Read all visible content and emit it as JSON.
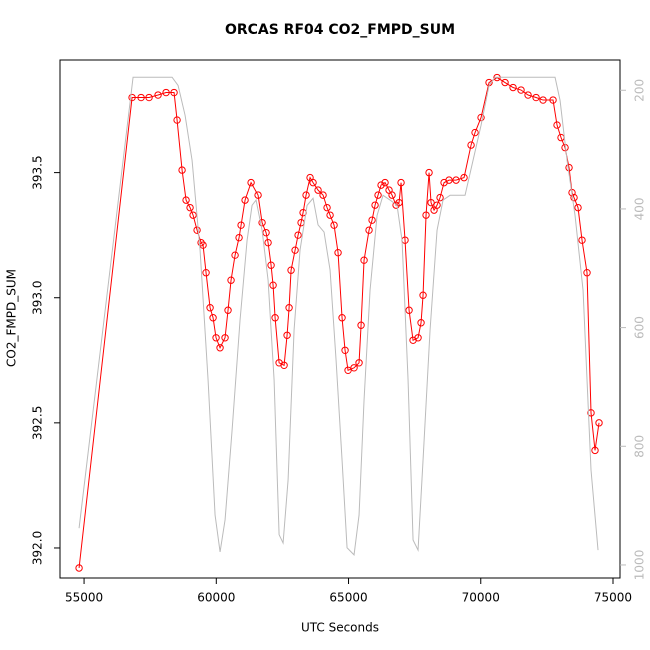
{
  "chart_data": {
    "type": "line",
    "title": "ORCAS RF04 CO2_FMPD_SUM",
    "xlabel": "UTC Seconds",
    "ylabel": "CO2_FMPD_SUM",
    "xlim": [
      54090,
      75265
    ],
    "xticks": [
      55000,
      60000,
      65000,
      70000,
      75000
    ],
    "ylim": [
      391.88,
      393.95
    ],
    "yticks": [
      {
        "value": 392.0,
        "label": "392.0"
      },
      392.5,
      {
        "value": 393.0,
        "label": "393.0"
      },
      393.5
    ],
    "y2lim": [
      1022,
      149
    ],
    "y2ticks": [
      200,
      400,
      600,
      800,
      1000
    ],
    "y2color": "#bbbbbb",
    "series": [
      {
        "color": "#ff0000",
        "marker": "circle",
        "x": [
          54811,
          56815,
          57156,
          57458,
          57798,
          58101,
          58403,
          58517,
          58706,
          58857,
          59008,
          59122,
          59273,
          59424,
          59500,
          59613,
          59765,
          59878,
          59991,
          60142,
          60331,
          60444,
          60558,
          60710,
          60861,
          60937,
          61088,
          61315,
          61580,
          61731,
          61882,
          61958,
          62071,
          62147,
          62223,
          62374,
          62563,
          62676,
          62752,
          62827,
          62979,
          63092,
          63205,
          63281,
          63394,
          63545,
          63659,
          63848,
          64037,
          64188,
          64302,
          64453,
          64604,
          64755,
          64869,
          64982,
          65209,
          65398,
          65474,
          65587,
          65776,
          65890,
          66003,
          66116,
          66230,
          66381,
          66532,
          66646,
          66797,
          66911,
          66986,
          67137,
          67289,
          67440,
          67629,
          67742,
          67818,
          67931,
          68045,
          68120,
          68234,
          68347,
          68461,
          68612,
          68801,
          69066,
          69368,
          69633,
          69784,
          70011,
          70313,
          70616,
          70918,
          71221,
          71523,
          71788,
          72091,
          72355,
          72733,
          72884,
          73035,
          73187,
          73338,
          73451,
          73527,
          73678,
          73829,
          74018,
          74169,
          74320,
          74472
        ],
        "values": [
          391.92,
          393.8,
          393.8,
          393.8,
          393.81,
          393.82,
          393.82,
          393.71,
          393.51,
          393.39,
          393.36,
          393.33,
          393.27,
          393.22,
          393.21,
          393.1,
          392.96,
          392.92,
          392.84,
          392.8,
          392.84,
          392.95,
          393.07,
          393.17,
          393.24,
          393.29,
          393.39,
          393.46,
          393.41,
          393.3,
          393.26,
          393.22,
          393.13,
          393.05,
          392.92,
          392.74,
          392.73,
          392.85,
          392.96,
          393.11,
          393.19,
          393.25,
          393.3,
          393.34,
          393.41,
          393.48,
          393.46,
          393.43,
          393.41,
          393.36,
          393.33,
          393.29,
          393.18,
          392.92,
          392.79,
          392.71,
          392.72,
          392.74,
          392.89,
          393.15,
          393.27,
          393.31,
          393.37,
          393.41,
          393.45,
          393.46,
          393.43,
          393.41,
          393.37,
          393.38,
          393.46,
          393.23,
          392.95,
          392.83,
          392.84,
          392.9,
          393.01,
          393.33,
          393.5,
          393.38,
          393.35,
          393.37,
          393.4,
          393.46,
          393.47,
          393.47,
          393.48,
          393.61,
          393.66,
          393.72,
          393.86,
          393.88,
          393.86,
          393.84,
          393.83,
          393.81,
          393.8,
          393.79,
          393.79,
          393.69,
          393.64,
          393.6,
          393.52,
          393.42,
          393.4,
          393.36,
          393.23,
          393.1,
          392.54,
          392.39,
          392.5
        ]
      },
      {
        "color": "#bbbbbb",
        "axis": "y2",
        "x": [
          54811,
          56853,
          58328,
          58555,
          58819,
          59084,
          59386,
          59689,
          59954,
          60143,
          60332,
          60597,
          60899,
          61164,
          61353,
          61504,
          61731,
          61958,
          62185,
          62374,
          62525,
          62714,
          62941,
          63167,
          63432,
          63659,
          63848,
          64075,
          64302,
          64529,
          64755,
          64944,
          65209,
          65398,
          65587,
          65814,
          66079,
          66305,
          66570,
          66835,
          67024,
          67251,
          67440,
          67629,
          67818,
          68083,
          68347,
          68574,
          68839,
          69406,
          69709,
          70011,
          70313,
          70540,
          72809,
          72998,
          73263,
          73565,
          73868,
          74169,
          74434
        ],
        "values": [
          938,
          178,
          178,
          192,
          242,
          318,
          469,
          688,
          916,
          978,
          924,
          773,
          587,
          453,
          394,
          385,
          436,
          520,
          688,
          949,
          963,
          857,
          604,
          469,
          394,
          382,
          427,
          439,
          503,
          655,
          823,
          971,
          983,
          916,
          722,
          537,
          411,
          377,
          385,
          394,
          453,
          688,
          958,
          975,
          823,
          604,
          436,
          385,
          377,
          377,
          318,
          259,
          192,
          178,
          178,
          217,
          318,
          411,
          537,
          840,
          975
        ]
      }
    ]
  }
}
